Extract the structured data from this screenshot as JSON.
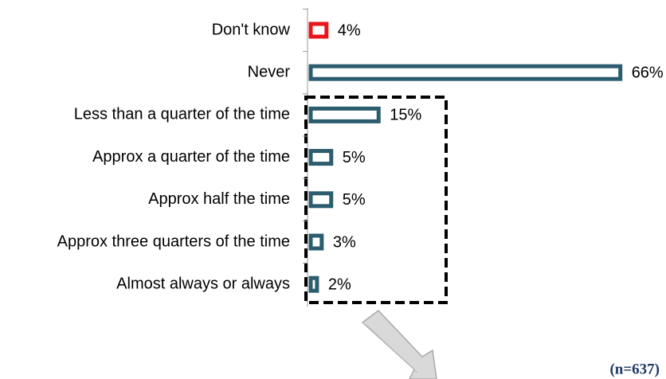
{
  "chart_data": {
    "type": "bar",
    "orientation": "horizontal",
    "categories": [
      "Don't know",
      "Never",
      "Less than a quarter of the time",
      "Approx a quarter of the time",
      "Approx half the time",
      "Approx three quarters of the time",
      "Almost always or always"
    ],
    "values": [
      4,
      66,
      15,
      5,
      5,
      3,
      2
    ],
    "value_labels": [
      "4%",
      "66%",
      "15%",
      "5%",
      "5%",
      "3%",
      "2%"
    ],
    "colors": [
      "#e8151b",
      "#2b5d6e",
      "#2b5d6e",
      "#2b5d6e",
      "#2b5d6e",
      "#2b5d6e",
      "#2b5d6e"
    ],
    "annotation": "(n=637)"
  }
}
